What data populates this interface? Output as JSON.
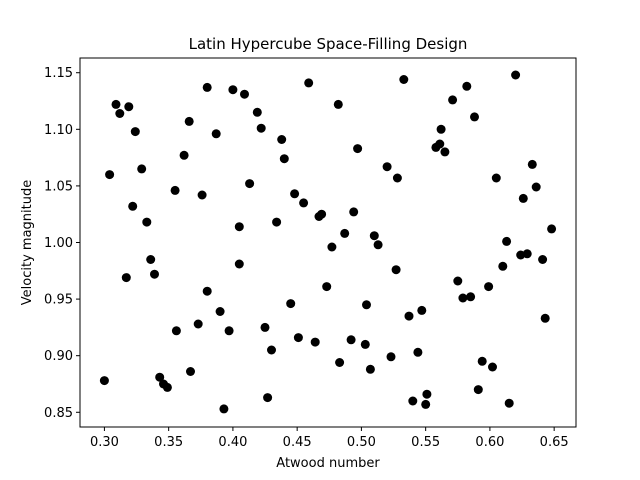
{
  "chart_data": {
    "type": "scatter",
    "title": "Latin Hypercube Space-Filling Design",
    "xlabel": "Atwood number",
    "ylabel": "Velocity magnitude",
    "xlim": [
      0.281,
      0.667
    ],
    "ylim": [
      0.837,
      1.163
    ],
    "xticks": [
      0.3,
      0.35,
      0.4,
      0.45,
      0.5,
      0.55,
      0.6,
      0.65
    ],
    "xtick_labels": [
      "0.30",
      "0.35",
      "0.40",
      "0.45",
      "0.50",
      "0.55",
      "0.60",
      "0.65"
    ],
    "yticks": [
      0.85,
      0.9,
      0.95,
      1.0,
      1.05,
      1.1,
      1.15
    ],
    "ytick_labels": [
      "0.85",
      "0.90",
      "0.95",
      "1.00",
      "1.05",
      "1.10",
      "1.15"
    ],
    "grid": false,
    "marker_color": "#000000",
    "points": [
      {
        "x": 0.3,
        "y": 0.878
      },
      {
        "x": 0.304,
        "y": 1.06
      },
      {
        "x": 0.309,
        "y": 1.122
      },
      {
        "x": 0.312,
        "y": 1.114
      },
      {
        "x": 0.317,
        "y": 0.969
      },
      {
        "x": 0.319,
        "y": 1.12
      },
      {
        "x": 0.322,
        "y": 1.032
      },
      {
        "x": 0.324,
        "y": 1.098
      },
      {
        "x": 0.329,
        "y": 1.065
      },
      {
        "x": 0.333,
        "y": 1.018
      },
      {
        "x": 0.336,
        "y": 0.985
      },
      {
        "x": 0.339,
        "y": 0.972
      },
      {
        "x": 0.343,
        "y": 0.881
      },
      {
        "x": 0.346,
        "y": 0.875
      },
      {
        "x": 0.349,
        "y": 0.872
      },
      {
        "x": 0.355,
        "y": 1.046
      },
      {
        "x": 0.356,
        "y": 0.922
      },
      {
        "x": 0.362,
        "y": 1.077
      },
      {
        "x": 0.366,
        "y": 1.107
      },
      {
        "x": 0.367,
        "y": 0.886
      },
      {
        "x": 0.373,
        "y": 0.928
      },
      {
        "x": 0.376,
        "y": 1.042
      },
      {
        "x": 0.38,
        "y": 0.957
      },
      {
        "x": 0.38,
        "y": 1.137
      },
      {
        "x": 0.387,
        "y": 1.096
      },
      {
        "x": 0.39,
        "y": 0.939
      },
      {
        "x": 0.393,
        "y": 0.853
      },
      {
        "x": 0.397,
        "y": 0.922
      },
      {
        "x": 0.4,
        "y": 1.135
      },
      {
        "x": 0.405,
        "y": 1.014
      },
      {
        "x": 0.405,
        "y": 0.981
      },
      {
        "x": 0.409,
        "y": 1.131
      },
      {
        "x": 0.413,
        "y": 1.052
      },
      {
        "x": 0.419,
        "y": 1.115
      },
      {
        "x": 0.422,
        "y": 1.101
      },
      {
        "x": 0.425,
        "y": 0.925
      },
      {
        "x": 0.427,
        "y": 0.863
      },
      {
        "x": 0.43,
        "y": 0.905
      },
      {
        "x": 0.434,
        "y": 1.018
      },
      {
        "x": 0.438,
        "y": 1.091
      },
      {
        "x": 0.44,
        "y": 1.074
      },
      {
        "x": 0.445,
        "y": 0.946
      },
      {
        "x": 0.448,
        "y": 1.043
      },
      {
        "x": 0.451,
        "y": 0.916
      },
      {
        "x": 0.455,
        "y": 1.035
      },
      {
        "x": 0.459,
        "y": 1.141
      },
      {
        "x": 0.464,
        "y": 0.912
      },
      {
        "x": 0.467,
        "y": 1.023
      },
      {
        "x": 0.469,
        "y": 1.025
      },
      {
        "x": 0.473,
        "y": 0.961
      },
      {
        "x": 0.477,
        "y": 0.996
      },
      {
        "x": 0.482,
        "y": 1.122
      },
      {
        "x": 0.483,
        "y": 0.894
      },
      {
        "x": 0.487,
        "y": 1.008
      },
      {
        "x": 0.492,
        "y": 0.914
      },
      {
        "x": 0.494,
        "y": 1.027
      },
      {
        "x": 0.497,
        "y": 1.083
      },
      {
        "x": 0.503,
        "y": 0.91
      },
      {
        "x": 0.504,
        "y": 0.945
      },
      {
        "x": 0.507,
        "y": 0.888
      },
      {
        "x": 0.51,
        "y": 1.006
      },
      {
        "x": 0.513,
        "y": 0.998
      },
      {
        "x": 0.52,
        "y": 1.067
      },
      {
        "x": 0.523,
        "y": 0.899
      },
      {
        "x": 0.527,
        "y": 0.976
      },
      {
        "x": 0.528,
        "y": 1.057
      },
      {
        "x": 0.533,
        "y": 1.144
      },
      {
        "x": 0.537,
        "y": 0.935
      },
      {
        "x": 0.54,
        "y": 0.86
      },
      {
        "x": 0.544,
        "y": 0.903
      },
      {
        "x": 0.547,
        "y": 0.94
      },
      {
        "x": 0.55,
        "y": 0.857
      },
      {
        "x": 0.551,
        "y": 0.866
      },
      {
        "x": 0.558,
        "y": 1.084
      },
      {
        "x": 0.561,
        "y": 1.087
      },
      {
        "x": 0.562,
        "y": 1.1
      },
      {
        "x": 0.565,
        "y": 1.08
      },
      {
        "x": 0.571,
        "y": 1.126
      },
      {
        "x": 0.575,
        "y": 0.966
      },
      {
        "x": 0.579,
        "y": 0.951
      },
      {
        "x": 0.582,
        "y": 1.138
      },
      {
        "x": 0.585,
        "y": 0.952
      },
      {
        "x": 0.588,
        "y": 1.111
      },
      {
        "x": 0.591,
        "y": 0.87
      },
      {
        "x": 0.594,
        "y": 0.895
      },
      {
        "x": 0.599,
        "y": 0.961
      },
      {
        "x": 0.602,
        "y": 0.89
      },
      {
        "x": 0.605,
        "y": 1.057
      },
      {
        "x": 0.61,
        "y": 0.979
      },
      {
        "x": 0.613,
        "y": 1.001
      },
      {
        "x": 0.615,
        "y": 0.858
      },
      {
        "x": 0.62,
        "y": 1.148
      },
      {
        "x": 0.624,
        "y": 0.989
      },
      {
        "x": 0.626,
        "y": 1.039
      },
      {
        "x": 0.629,
        "y": 0.99
      },
      {
        "x": 0.633,
        "y": 1.069
      },
      {
        "x": 0.636,
        "y": 1.049
      },
      {
        "x": 0.641,
        "y": 0.985
      },
      {
        "x": 0.643,
        "y": 0.933
      },
      {
        "x": 0.648,
        "y": 1.012
      }
    ]
  }
}
